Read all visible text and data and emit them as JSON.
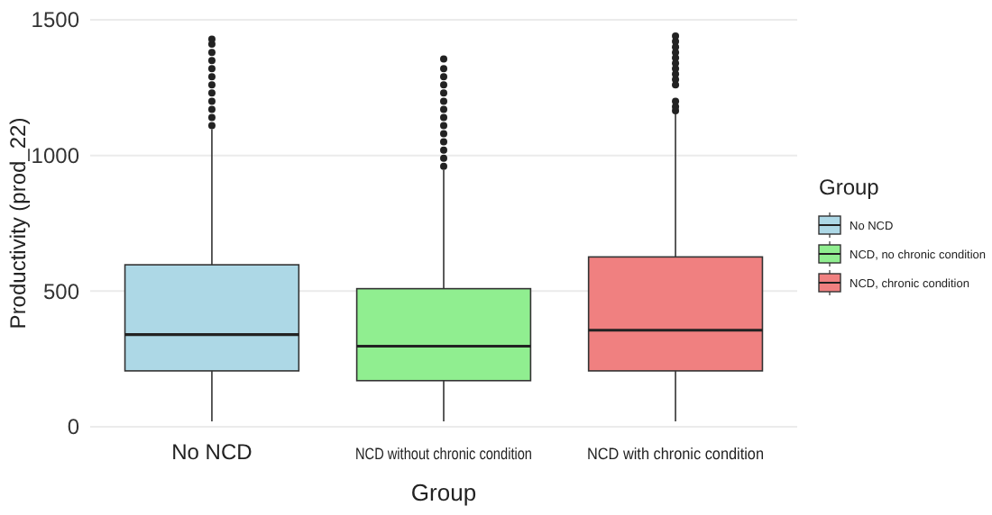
{
  "chart_data": {
    "type": "box",
    "xlabel": "Group",
    "ylabel": "Productivity (prod_22)",
    "legend_title": "Group",
    "categories": [
      "No NCD",
      "NCD without chronic condition",
      "NCD with chronic condition"
    ],
    "ylim": [
      0,
      1500
    ],
    "yticks": [
      0,
      500,
      1000,
      1500
    ],
    "grid": "y",
    "legend": "right",
    "series": [
      {
        "name": "No NCD",
        "color": "#add8e6",
        "boxes": [
          {
            "low": 20,
            "q1": 206,
            "median": 340,
            "q3": 597,
            "high": 1097,
            "outliers": [
              1110,
              1140,
              1170,
              1200,
              1230,
              1260,
              1290,
              1320,
              1350,
              1380,
              1410,
              1429
            ]
          },
          null,
          null
        ]
      },
      {
        "name": "NCD, no chronic condition",
        "color": "#90ee90",
        "boxes": [
          null,
          {
            "low": 20,
            "q1": 170,
            "median": 297,
            "q3": 509,
            "high": 947,
            "outliers": [
              960,
              990,
              1020,
              1050,
              1080,
              1110,
              1140,
              1170,
              1200,
              1230,
              1260,
              1290,
              1320,
              1356
            ]
          },
          null
        ]
      },
      {
        "name": "NCD, chronic condition",
        "color": "#f08080",
        "boxes": [
          null,
          null,
          {
            "low": 20,
            "q1": 206,
            "median": 356,
            "q3": 626,
            "high": 1153,
            "outliers": [
              1165,
              1180,
              1200,
              1260,
              1280,
              1300,
              1320,
              1340,
              1360,
              1380,
              1400,
              1420,
              1440
            ]
          }
        ]
      }
    ]
  }
}
